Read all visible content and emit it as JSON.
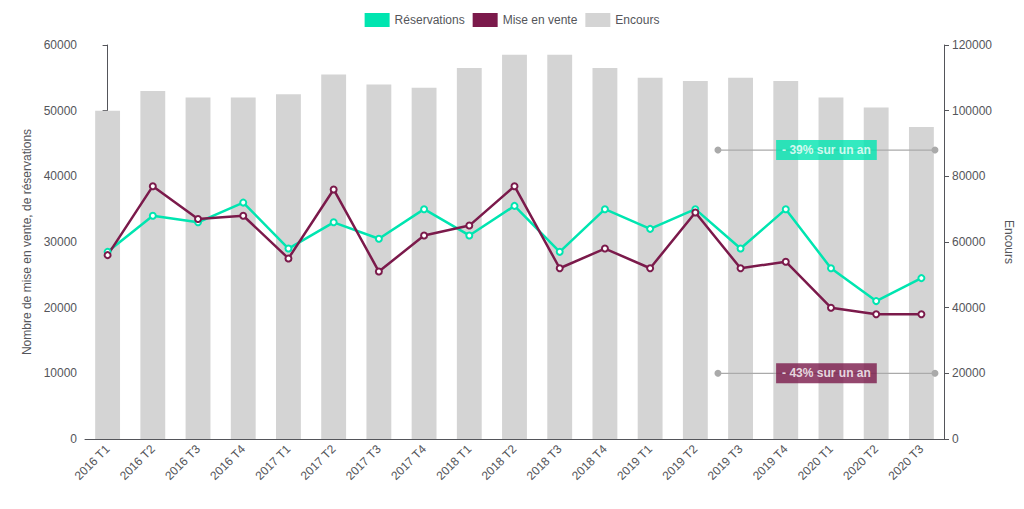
{
  "chart_data": {
    "type": "line",
    "categories": [
      "2016 T1",
      "2016 T2",
      "2016 T3",
      "2016 T4",
      "2017 T1",
      "2017 T2",
      "2017 T3",
      "2017 T4",
      "2018 T1",
      "2018 T2",
      "2018 T3",
      "2018 T4",
      "2019 T1",
      "2019 T2",
      "2019 T3",
      "2019 T4",
      "2020 T1",
      "2020 T2",
      "2020 T3"
    ],
    "ylabel": "Nombre de mise en vente, de réservations",
    "y2label": "Encours",
    "ylim": [
      0,
      60000
    ],
    "yticks": [
      0,
      10000,
      20000,
      30000,
      40000,
      50000,
      60000
    ],
    "y2lim": [
      0,
      120000
    ],
    "y2ticks": [
      0,
      20000,
      40000,
      60000,
      80000,
      100000,
      120000
    ],
    "grid": false,
    "legend": "top",
    "series": [
      {
        "name": "Réservations",
        "type": "line",
        "color": "#00e5b0",
        "marker": "circle",
        "values": [
          28500,
          34000,
          33000,
          36000,
          29000,
          33000,
          30500,
          35000,
          31000,
          35500,
          28500,
          35000,
          32000,
          35000,
          29000,
          35000,
          26000,
          21000,
          24500
        ]
      },
      {
        "name": "Mise en vente",
        "type": "line",
        "color": "#7b1a4b",
        "marker": "circle",
        "values": [
          28000,
          38500,
          33500,
          34000,
          27500,
          38000,
          25500,
          31000,
          32500,
          38500,
          26000,
          29000,
          26000,
          34500,
          26000,
          27000,
          20000,
          19000,
          19000
        ]
      },
      {
        "name": "Encours",
        "type": "bar",
        "color": "#d4d4d4",
        "axis": "y2",
        "values": [
          100000,
          106000,
          104000,
          104000,
          105000,
          111000,
          108000,
          107000,
          113000,
          117000,
          117000,
          113000,
          110000,
          109000,
          110000,
          109000,
          104000,
          101000,
          95000
        ]
      }
    ],
    "annotations": [
      {
        "text": "- 39% sur un an",
        "color": "#00e5b0",
        "y": 44000,
        "x": [
          13.5,
          18.3
        ]
      },
      {
        "text": "- 43% sur un an",
        "color": "#7b1a4b",
        "y": 10000,
        "x": [
          13.5,
          18.3
        ]
      }
    ]
  }
}
